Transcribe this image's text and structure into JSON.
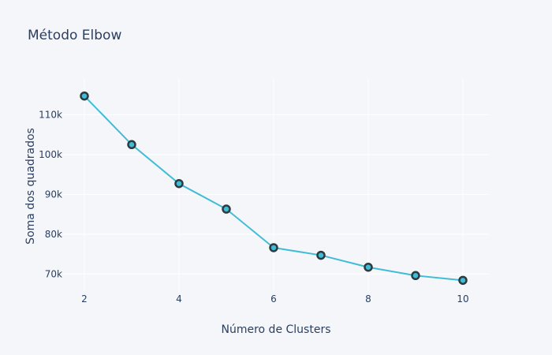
{
  "chart_data": {
    "type": "line",
    "title": "Método Elbow",
    "xlabel": "Número de Clusters",
    "ylabel": "Soma dos quadrados",
    "x": [
      2,
      3,
      4,
      5,
      6,
      7,
      8,
      9,
      10
    ],
    "y": [
      114700,
      102500,
      92700,
      86300,
      76600,
      74700,
      71700,
      69600,
      68400
    ],
    "xticks": [
      2,
      4,
      6,
      8,
      10
    ],
    "xtick_labels": [
      "2",
      "4",
      "6",
      "8",
      "10"
    ],
    "yticks": [
      70000,
      80000,
      90000,
      100000,
      110000
    ],
    "ytick_labels": [
      "70k",
      "80k",
      "90k",
      "100k",
      "110k"
    ],
    "xlim": [
      1.55,
      10.55
    ],
    "ylim": [
      65500,
      119000
    ],
    "grid": true,
    "line_color": "#3fbcd6",
    "marker_fill": "#3fbcd6",
    "marker_edge": "#2d3a40"
  }
}
